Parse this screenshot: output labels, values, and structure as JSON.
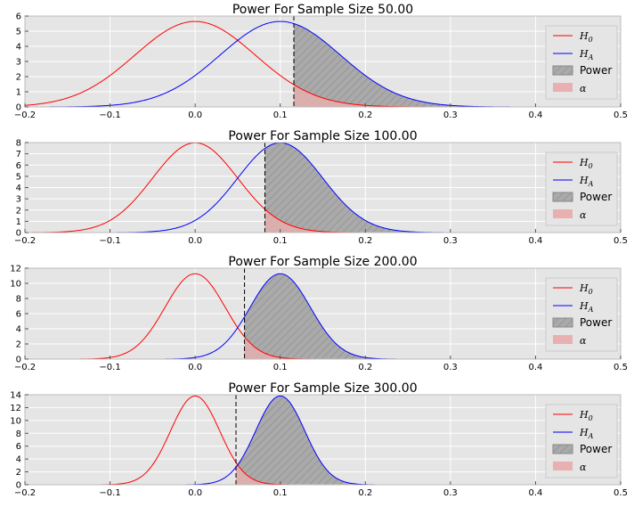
{
  "colors": {
    "background": "#e5e5e5",
    "grid": "#ffffff",
    "h0": "#ff0000",
    "ha": "#0000ff",
    "power_fill": "#aaaaaa",
    "alpha_fill": "#e8b0b0",
    "critical_line": "#000000"
  },
  "legend": {
    "position": "top-right",
    "h0_label": "H",
    "h0_sub": "0",
    "ha_label": "H",
    "ha_sub": "A",
    "power_label": "Power",
    "alpha_label": "α"
  },
  "chart_data": [
    {
      "type": "area",
      "title": "Power For Sample Size 50.00",
      "sample_size": 50,
      "xlim": [
        -0.2,
        0.5
      ],
      "ylim": [
        0,
        6
      ],
      "xticks": [
        -0.2,
        -0.1,
        0.0,
        0.1,
        0.2,
        0.3,
        0.4,
        0.5
      ],
      "xtick_labels": [
        "−0.2",
        "−0.1",
        "0.0",
        "0.1",
        "0.2",
        "0.3",
        "0.4",
        "0.5"
      ],
      "yticks": [
        0,
        1,
        2,
        3,
        4,
        5,
        6
      ],
      "ytick_labels": [
        "0",
        "1",
        "2",
        "3",
        "4",
        "5",
        "6"
      ],
      "series": [
        {
          "name": "H0",
          "distribution": "normal",
          "mean": 0.0,
          "sd": 0.0707
        },
        {
          "name": "HA",
          "distribution": "normal",
          "mean": 0.1,
          "sd": 0.0707
        }
      ],
      "critical_value": 0.116,
      "grid": true
    },
    {
      "type": "area",
      "title": "Power For Sample Size 100.00",
      "sample_size": 100,
      "xlim": [
        -0.2,
        0.5
      ],
      "ylim": [
        0,
        8
      ],
      "xticks": [
        -0.2,
        -0.1,
        0.0,
        0.1,
        0.2,
        0.3,
        0.4,
        0.5
      ],
      "xtick_labels": [
        "−0.2",
        "−0.1",
        "0.0",
        "0.1",
        "0.2",
        "0.3",
        "0.4",
        "0.5"
      ],
      "yticks": [
        0,
        1,
        2,
        3,
        4,
        5,
        6,
        7,
        8
      ],
      "ytick_labels": [
        "0",
        "1",
        "2",
        "3",
        "4",
        "5",
        "6",
        "7",
        "8"
      ],
      "series": [
        {
          "name": "H0",
          "distribution": "normal",
          "mean": 0.0,
          "sd": 0.05
        },
        {
          "name": "HA",
          "distribution": "normal",
          "mean": 0.1,
          "sd": 0.05
        }
      ],
      "critical_value": 0.082,
      "grid": true
    },
    {
      "type": "area",
      "title": "Power For Sample Size 200.00",
      "sample_size": 200,
      "xlim": [
        -0.2,
        0.5
      ],
      "ylim": [
        0,
        12
      ],
      "xticks": [
        -0.2,
        -0.1,
        0.0,
        0.1,
        0.2,
        0.3,
        0.4,
        0.5
      ],
      "xtick_labels": [
        "−0.2",
        "−0.1",
        "0.0",
        "0.1",
        "0.2",
        "0.3",
        "0.4",
        "0.5"
      ],
      "yticks": [
        0,
        2,
        4,
        6,
        8,
        10,
        12
      ],
      "ytick_labels": [
        "0",
        "2",
        "4",
        "6",
        "8",
        "10",
        "12"
      ],
      "series": [
        {
          "name": "H0",
          "distribution": "normal",
          "mean": 0.0,
          "sd": 0.0354
        },
        {
          "name": "HA",
          "distribution": "normal",
          "mean": 0.1,
          "sd": 0.0354
        }
      ],
      "critical_value": 0.058,
      "grid": true
    },
    {
      "type": "area",
      "title": "Power For Sample Size 300.00",
      "sample_size": 300,
      "xlim": [
        -0.2,
        0.5
      ],
      "ylim": [
        0,
        14
      ],
      "xticks": [
        -0.2,
        -0.1,
        0.0,
        0.1,
        0.2,
        0.3,
        0.4,
        0.5
      ],
      "xtick_labels": [
        "−0.2",
        "−0.1",
        "0.0",
        "0.1",
        "0.2",
        "0.3",
        "0.4",
        "0.5"
      ],
      "yticks": [
        0,
        2,
        4,
        6,
        8,
        10,
        12,
        14
      ],
      "ytick_labels": [
        "0",
        "2",
        "4",
        "6",
        "8",
        "10",
        "12",
        "14"
      ],
      "series": [
        {
          "name": "H0",
          "distribution": "normal",
          "mean": 0.0,
          "sd": 0.0289
        },
        {
          "name": "HA",
          "distribution": "normal",
          "mean": 0.1,
          "sd": 0.0289
        }
      ],
      "critical_value": 0.048,
      "grid": true
    }
  ]
}
